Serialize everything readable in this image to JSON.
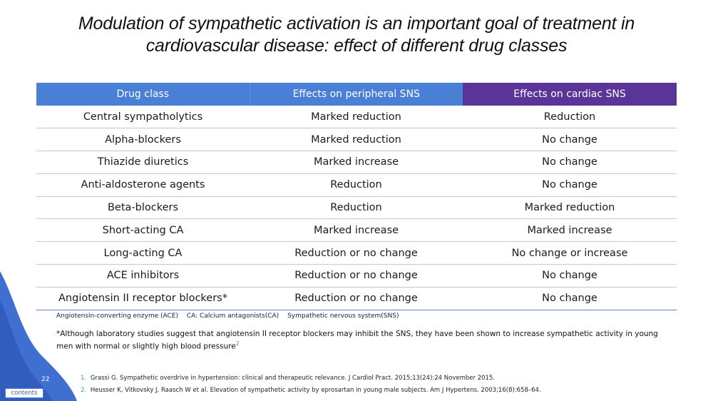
{
  "title_line1": "Modulation of sympathetic activation is an important goal of treatment in",
  "title_line2": "cardiovascular disease: effect of different drug classes",
  "table": {
    "headers": [
      "Drug class",
      "Effects on peripheral SNS",
      "Effects on cardiac SNS"
    ],
    "rows": [
      [
        "Central sympatholytics",
        "Marked reduction",
        "Reduction"
      ],
      [
        "Alpha-blockers",
        "Marked reduction",
        "No change"
      ],
      [
        "Thiazide diuretics",
        "Marked increase",
        "No change"
      ],
      [
        "Anti-aldosterone agents",
        "Reduction",
        "No change"
      ],
      [
        "Beta-blockers",
        "Reduction",
        "Marked reduction"
      ],
      [
        "Short-acting CA",
        "Marked increase",
        "Marked increase"
      ],
      [
        "Long-acting CA",
        "Reduction or no change",
        "No change or increase"
      ],
      [
        "ACE inhibitors",
        "Reduction or no change",
        "No change"
      ],
      [
        "Angiotensin II receptor blockers*",
        "Reduction or no change",
        "No change"
      ]
    ]
  },
  "abbreviations": [
    "Angiotensin-converting enzyme (ACE)",
    "CA: Calcium antagonists(CA)",
    "Sympathetic nervous system(SNS)"
  ],
  "footnote": {
    "text": "*Although laboratory studies suggest that angiotensin II receptor blockers may inhibit the SNS, they have been shown to increase sympathetic activity in young men with normal or slightly high blood pressure",
    "ref": "2"
  },
  "references": [
    {
      "num": "1.",
      "text": "Grassi G. Sympathetic overdrive in hypertension: clinical and therapeutic relevance. J Cardiol Pract. 2015;13(24):24 November 2015."
    },
    {
      "num": "2.",
      "text": "Heusser K, Vitkovsky J, Raasch W et al. Elevation of sympathetic activity by eprosartan in young male subjects. Am J Hypertens. 2003;16(8):658–64."
    }
  ],
  "slide_number": "22",
  "contents_label": "contents",
  "colors": {
    "header_blue": "#4a7fd6",
    "header_purple": "#5a3597",
    "accent_teal": "#3aa0a8"
  }
}
